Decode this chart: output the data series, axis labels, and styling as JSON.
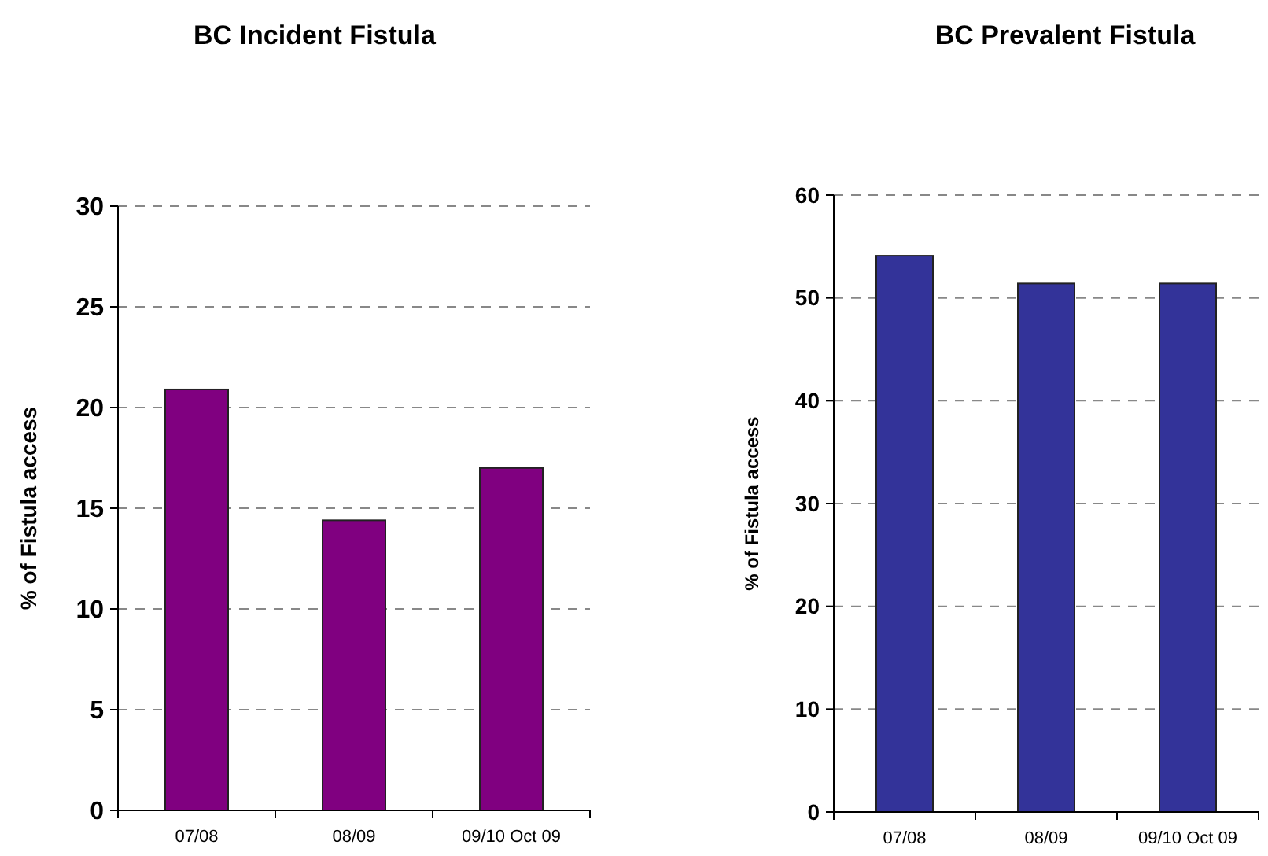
{
  "chart_data": [
    {
      "type": "bar",
      "title": "BC Incident Fistula",
      "ylabel": "% of Fistula access",
      "categories": [
        "07/08",
        "08/09",
        "09/10 Oct 09"
      ],
      "values": [
        20.9,
        14.4,
        17.0
      ],
      "color": "#800080",
      "ylim": [
        0,
        30
      ],
      "yticks": [
        0,
        5,
        10,
        15,
        20,
        25,
        30
      ],
      "grid": "y"
    },
    {
      "type": "bar",
      "title": "BC Prevalent Fistula",
      "ylabel": "% of Fistula access",
      "categories": [
        "07/08",
        "08/09",
        "09/10 Oct 09"
      ],
      "values": [
        54.1,
        51.4,
        51.4
      ],
      "color": "#333399",
      "ylim": [
        0,
        60
      ],
      "yticks": [
        0,
        10,
        20,
        30,
        40,
        50,
        60
      ],
      "grid": "y"
    }
  ]
}
